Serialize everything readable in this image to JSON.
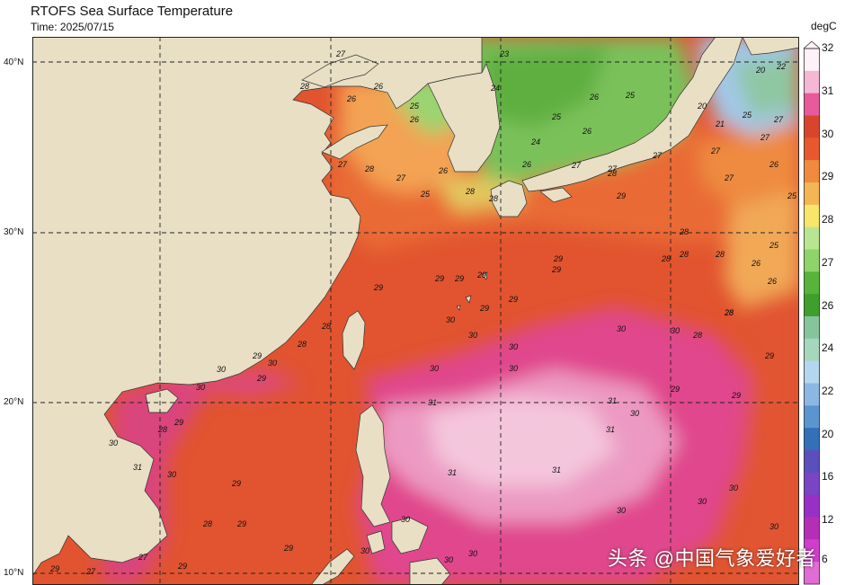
{
  "header": {
    "title": "RTOFS Sea Surface Temperature",
    "time": "Time: 2025/07/15"
  },
  "latitude_labels": [
    "40°N",
    "30°N",
    "20°N",
    "10°N"
  ],
  "colorbar": {
    "unit": "degC",
    "tick_labels": [
      "32",
      "31",
      "30",
      "29",
      "28",
      "27",
      "26",
      "24",
      "22",
      "20",
      "16",
      "12",
      "6"
    ],
    "colors": [
      "#fdf2f8",
      "#f5b8d4",
      "#e75a9b",
      "#d9452c",
      "#e8582e",
      "#f08a3c",
      "#f4b554",
      "#f7e56c",
      "#b8e690",
      "#8ed46a",
      "#58b33a",
      "#3f9f2d",
      "#86c59c",
      "#a6d6bc",
      "#b5d6ef",
      "#8cb7e3",
      "#5b95d0",
      "#3270ba",
      "#5b4fbd",
      "#7a45c4",
      "#9a2fc5",
      "#b52fb6",
      "#cf3fcb",
      "#e06dd3"
    ]
  },
  "map": {
    "land_color": "#e8dfc4",
    "contour_labels": [
      "20",
      "21",
      "22",
      "23",
      "24",
      "25",
      "26",
      "27",
      "28",
      "29",
      "30",
      "31"
    ]
  },
  "watermark": "头条 @中国气象爱好者"
}
